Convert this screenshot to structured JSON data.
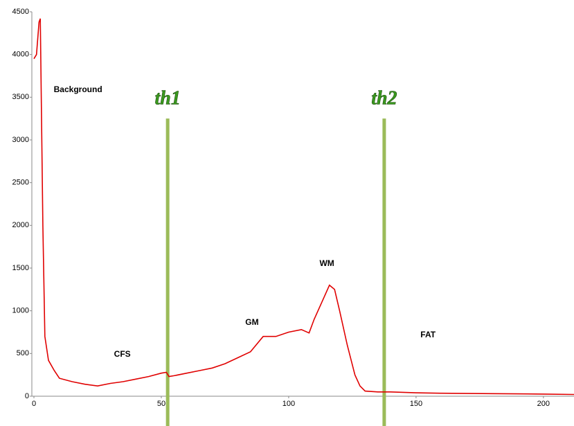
{
  "chart_data": {
    "type": "line",
    "x": [
      0,
      1,
      2,
      2.5,
      3.5,
      4.3,
      5.7,
      8,
      10,
      15,
      20,
      25,
      30,
      35,
      40,
      45,
      50,
      52,
      53,
      55,
      60,
      65,
      70,
      75,
      80,
      85,
      90,
      95,
      100,
      105,
      108,
      110,
      113,
      116,
      118,
      120,
      123,
      126,
      128,
      130,
      135,
      140,
      150,
      160,
      180,
      200,
      212
    ],
    "values": [
      3950,
      4000,
      4380,
      4420,
      2000,
      700,
      420,
      300,
      210,
      170,
      140,
      120,
      150,
      170,
      200,
      230,
      270,
      280,
      230,
      240,
      270,
      300,
      330,
      380,
      450,
      520,
      700,
      700,
      750,
      780,
      740,
      900,
      1100,
      1300,
      1250,
      1000,
      600,
      250,
      120,
      60,
      50,
      50,
      40,
      35,
      30,
      25,
      20
    ],
    "color": "#e00000",
    "xlim": [
      0,
      212
    ],
    "ylim": [
      0,
      4500
    ],
    "xticks": [
      0,
      50,
      100,
      150,
      200
    ],
    "yticks": [
      0,
      500,
      1000,
      1500,
      2000,
      2500,
      3000,
      3500,
      4000,
      4500
    ],
    "thresholds": [
      {
        "label": "th1",
        "x": 52.5,
        "top": 3250
      },
      {
        "label": "th2",
        "x": 137.5,
        "top": 3250
      }
    ],
    "threshold_color": "#9bbb59",
    "annotations": [
      {
        "text": "Background",
        "x": 17.3,
        "y": 3585
      },
      {
        "text": "CFS",
        "x": 34.7,
        "y": 487
      },
      {
        "text": "GM",
        "x": 85.6,
        "y": 860
      },
      {
        "text": "WM",
        "x": 115,
        "y": 1549
      },
      {
        "text": "FAT",
        "x": 154.7,
        "y": 714
      }
    ]
  }
}
